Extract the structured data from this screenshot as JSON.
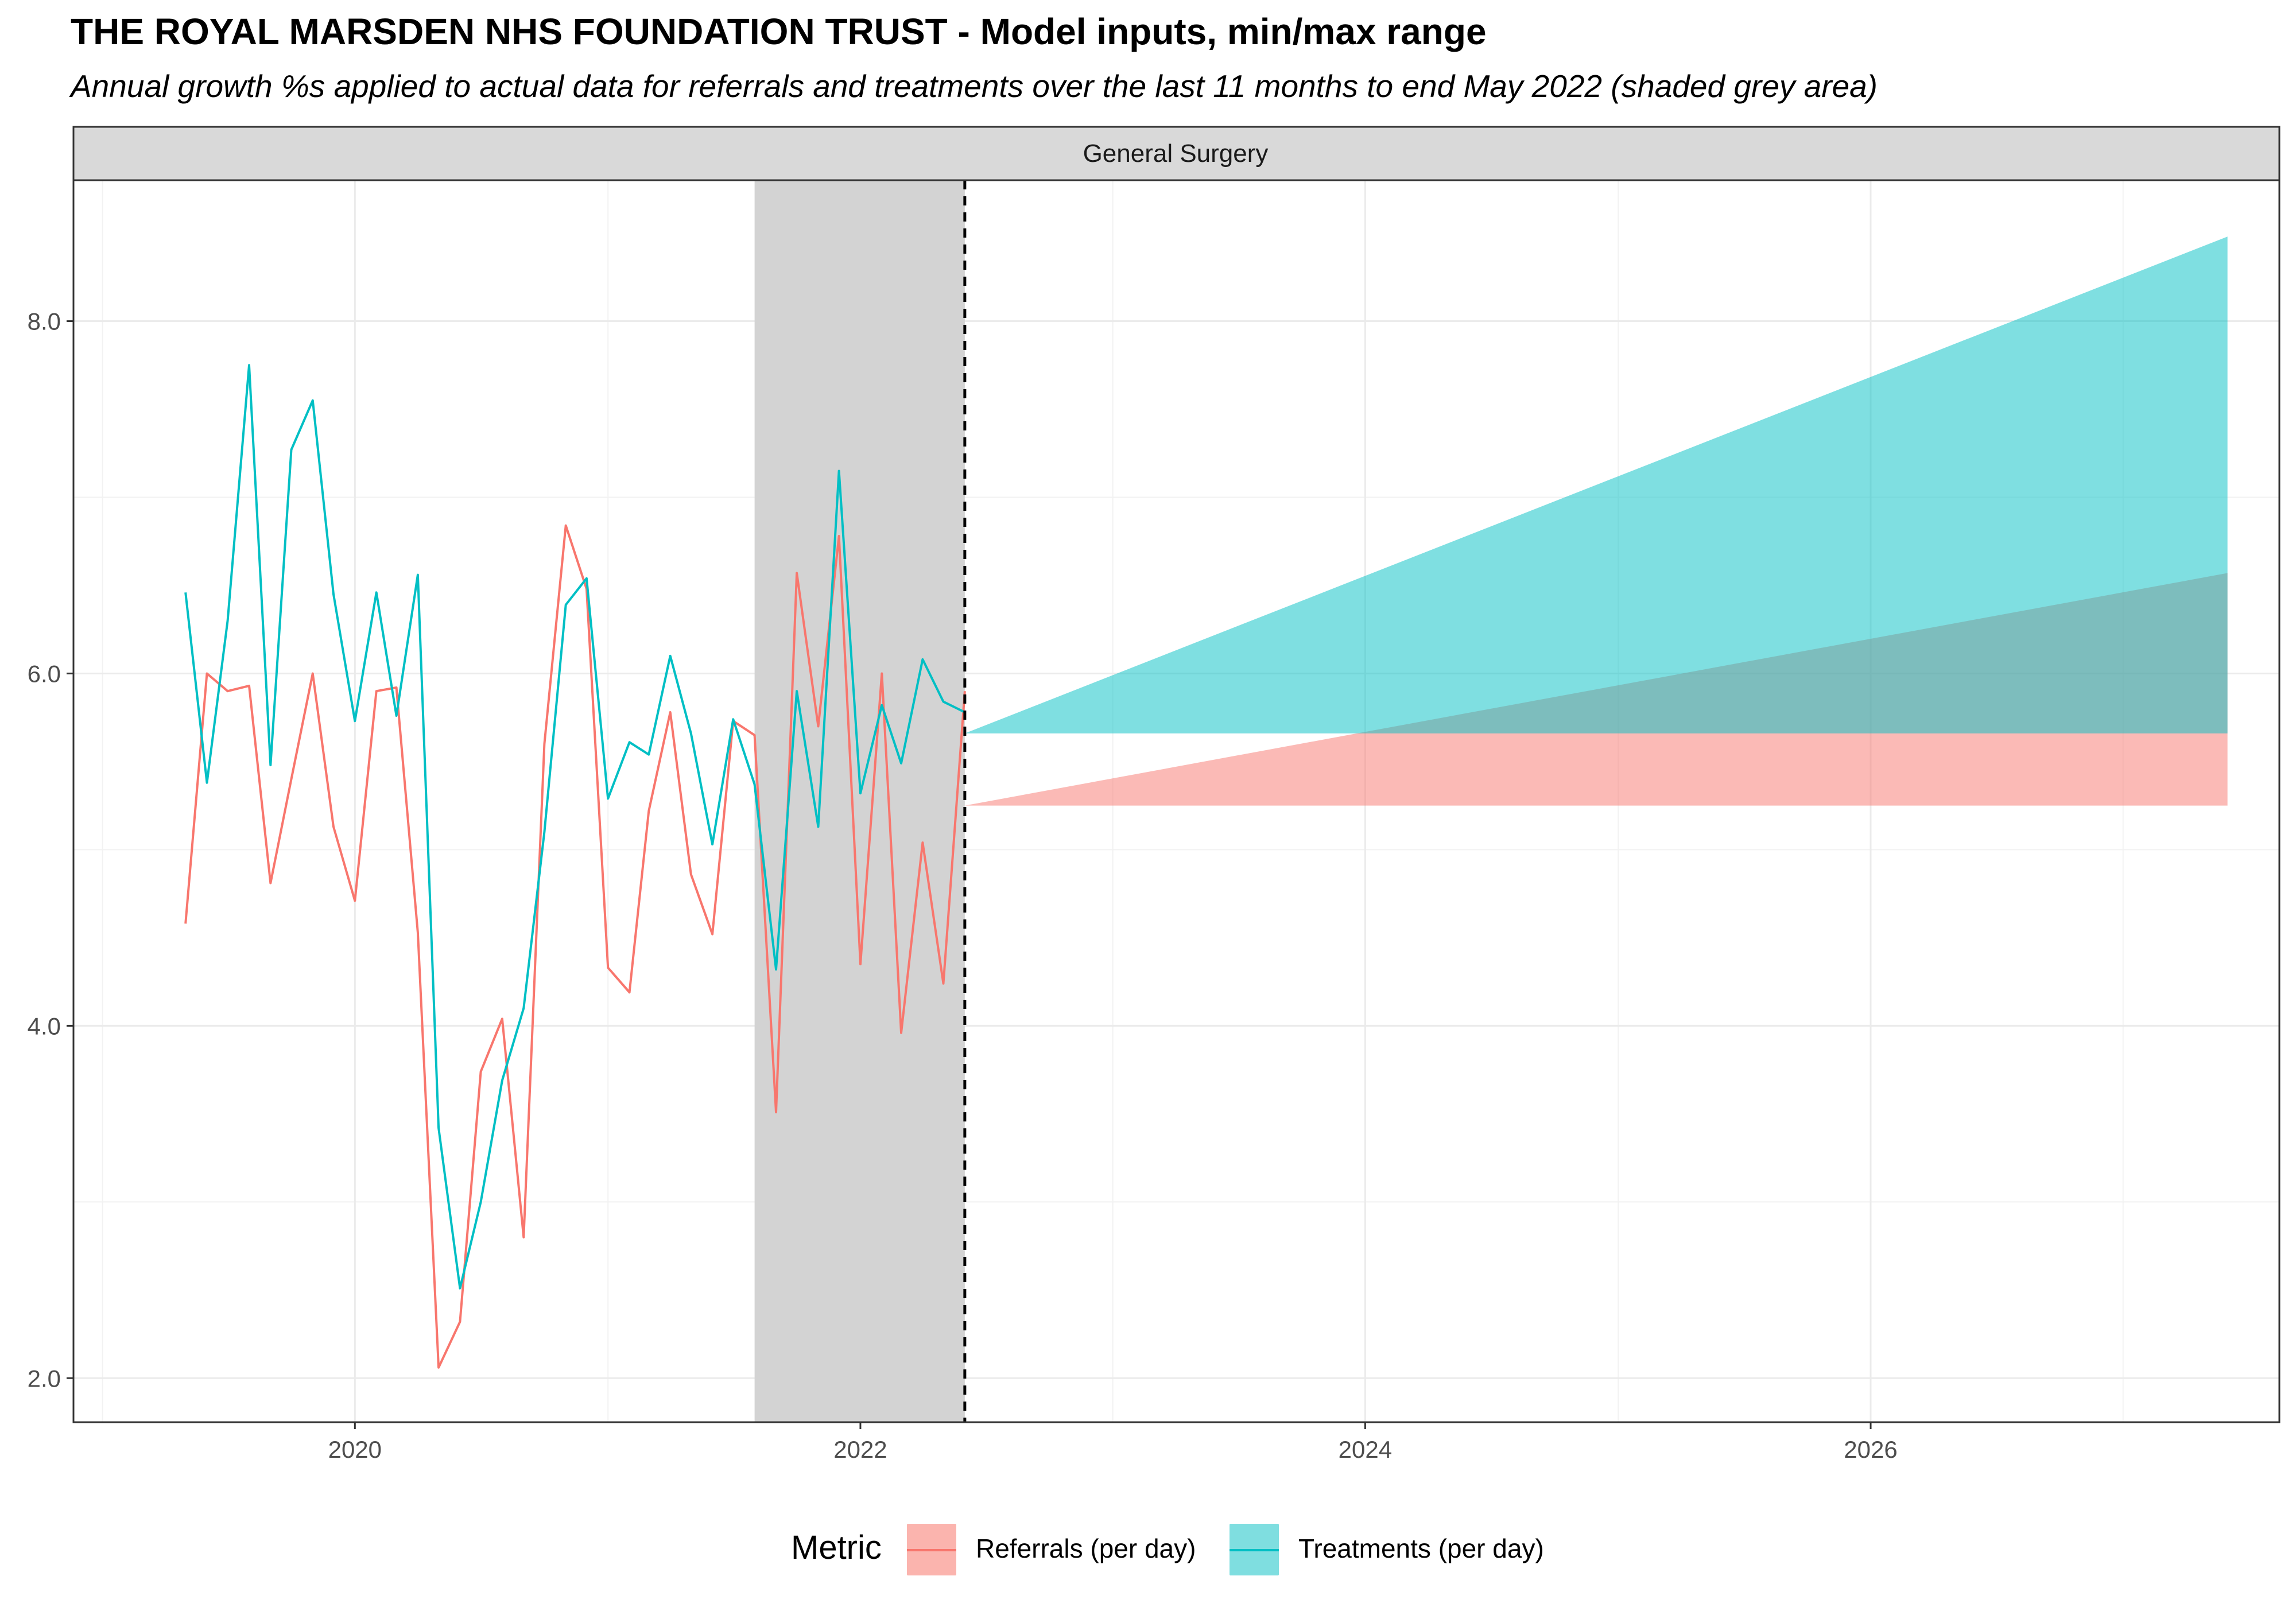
{
  "title": "THE ROYAL MARSDEN NHS FOUNDATION TRUST - Model inputs, min/max range",
  "subtitle": "Annual growth %s applied to actual data for referrals and treatments over the last 11 months to end May 2022 (shaded grey area)",
  "legend": {
    "title": "Metric",
    "items": [
      {
        "label": "Referrals (per day)",
        "color": "#F8766D",
        "fill": "#FBB4AE"
      },
      {
        "label": "Treatments (per day)",
        "color": "#00BFC4",
        "fill": "#7FDEE0"
      }
    ]
  },
  "chart_data": {
    "type": "line",
    "facet_label": "General Surgery",
    "xlabel": "",
    "ylabel": "",
    "xlim": [
      "2018-11-20",
      "2027-08-15"
    ],
    "ylim": [
      1.75,
      8.8
    ],
    "x_ticks": [
      "2020",
      "2022",
      "2024",
      "2026"
    ],
    "y_ticks": [
      "2.0",
      "4.0",
      "6.0",
      "8.0"
    ],
    "grid": true,
    "legend_position": "bottom",
    "shaded_period": {
      "start": "2021-08-01",
      "end": "2022-06-01",
      "color": "#D3D3D3"
    },
    "vline": {
      "x": "2022-06-01",
      "style": "dashed"
    },
    "x": [
      "2019-05-01",
      "2019-06-01",
      "2019-07-01",
      "2019-08-01",
      "2019-09-01",
      "2019-10-01",
      "2019-11-01",
      "2019-12-01",
      "2020-01-01",
      "2020-02-01",
      "2020-03-01",
      "2020-04-01",
      "2020-05-01",
      "2020-06-01",
      "2020-07-01",
      "2020-08-01",
      "2020-09-01",
      "2020-10-01",
      "2020-11-01",
      "2020-12-01",
      "2021-01-01",
      "2021-02-01",
      "2021-03-01",
      "2021-04-01",
      "2021-05-01",
      "2021-06-01",
      "2021-07-01",
      "2021-08-01",
      "2021-09-01",
      "2021-10-01",
      "2021-11-01",
      "2021-12-01",
      "2022-01-01",
      "2022-02-01",
      "2022-03-01",
      "2022-04-01",
      "2022-05-01",
      "2022-06-01"
    ],
    "series": [
      {
        "name": "Referrals (per day)",
        "color": "#F8766D",
        "values": [
          4.58,
          6.0,
          5.9,
          5.93,
          4.81,
          5.4,
          6.0,
          5.13,
          4.71,
          5.9,
          5.92,
          4.53,
          2.06,
          2.32,
          3.74,
          4.04,
          2.8,
          5.6,
          6.84,
          6.48,
          4.33,
          4.19,
          5.22,
          5.78,
          4.86,
          4.52,
          5.73,
          5.65,
          3.51,
          6.57,
          5.7,
          6.78,
          4.35,
          6.0,
          3.96,
          5.04,
          4.24,
          5.9
        ]
      },
      {
        "name": "Treatments (per day)",
        "color": "#00BFC4",
        "values": [
          6.46,
          5.38,
          6.3,
          7.75,
          5.48,
          7.27,
          7.55,
          6.45,
          5.73,
          6.46,
          5.76,
          6.56,
          3.42,
          2.51,
          3.0,
          3.69,
          4.1,
          5.1,
          6.39,
          6.54,
          5.29,
          5.61,
          5.54,
          6.1,
          5.66,
          5.03,
          5.74,
          5.37,
          4.32,
          5.9,
          5.13,
          7.15,
          5.32,
          5.82,
          5.49,
          6.08,
          5.84,
          5.78
        ]
      }
    ],
    "projection_ranges": [
      {
        "name": "Referrals (per day)",
        "fill": "#F8766D",
        "x_start": "2022-06-01",
        "x_end": "2027-06-01",
        "start_value": 5.25,
        "end_min": 5.25,
        "end_max": 6.57,
        "band_min_level": 5.25,
        "band_max_level": 5.66
      },
      {
        "name": "Treatments (per day)",
        "fill": "#00BFC4",
        "x_start": "2022-06-01",
        "x_end": "2027-06-01",
        "start_value": 5.66,
        "end_min": 5.66,
        "end_max": 8.48
      }
    ]
  }
}
